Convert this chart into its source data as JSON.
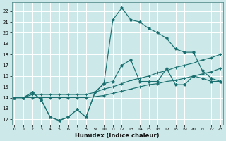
{
  "xlabel": "Humidex (Indice chaleur)",
  "background_color": "#cce8e8",
  "grid_color": "#b8d8d8",
  "line_color": "#1a7070",
  "x_ticks": [
    0,
    1,
    2,
    3,
    4,
    5,
    6,
    7,
    8,
    9,
    10,
    11,
    12,
    13,
    14,
    15,
    16,
    17,
    18,
    19,
    20,
    21,
    22,
    23
  ],
  "y_ticks": [
    12,
    13,
    14,
    15,
    16,
    17,
    18,
    19,
    20,
    21,
    22
  ],
  "ylim": [
    11.5,
    22.8
  ],
  "xlim": [
    -0.3,
    23.3
  ],
  "line_peaked_x": [
    0,
    1,
    2,
    3,
    4,
    5,
    6,
    7,
    8,
    9,
    10,
    11,
    12,
    13,
    14,
    15,
    16,
    17,
    18,
    19,
    20,
    21,
    22,
    23
  ],
  "line_peaked_y": [
    14.0,
    14.0,
    14.5,
    13.8,
    12.2,
    11.9,
    12.2,
    12.9,
    12.2,
    14.5,
    15.3,
    21.2,
    22.3,
    21.2,
    21.0,
    20.4,
    20.0,
    19.5,
    18.5,
    18.2,
    18.2,
    16.5,
    15.8,
    15.5
  ],
  "line_jagged_x": [
    0,
    1,
    2,
    3,
    4,
    5,
    6,
    7,
    8,
    9,
    10,
    11,
    12,
    13,
    14,
    15,
    16,
    17,
    18,
    19,
    20,
    21,
    22,
    23
  ],
  "line_jagged_y": [
    14.0,
    14.0,
    14.5,
    13.8,
    12.2,
    11.9,
    12.2,
    12.9,
    12.2,
    14.5,
    15.3,
    15.5,
    17.0,
    17.5,
    15.5,
    15.5,
    15.5,
    16.7,
    15.2,
    15.2,
    16.0,
    15.8,
    15.5,
    15.5
  ],
  "line_upper_x": [
    0,
    1,
    2,
    3,
    4,
    5,
    6,
    7,
    8,
    9,
    10,
    11,
    12,
    13,
    14,
    15,
    16,
    17,
    18,
    19,
    20,
    21,
    22,
    23
  ],
  "line_upper_y": [
    14.0,
    14.0,
    14.3,
    14.3,
    14.3,
    14.3,
    14.3,
    14.3,
    14.3,
    14.5,
    14.8,
    15.0,
    15.3,
    15.6,
    15.8,
    16.0,
    16.3,
    16.5,
    16.8,
    17.0,
    17.2,
    17.5,
    17.7,
    18.0
  ],
  "line_lower_x": [
    0,
    1,
    2,
    3,
    4,
    5,
    6,
    7,
    8,
    9,
    10,
    11,
    12,
    13,
    14,
    15,
    16,
    17,
    18,
    19,
    20,
    21,
    22,
    23
  ],
  "line_lower_y": [
    14.0,
    14.0,
    14.0,
    14.0,
    14.0,
    14.0,
    14.0,
    14.0,
    14.0,
    14.1,
    14.2,
    14.4,
    14.6,
    14.8,
    15.0,
    15.2,
    15.3,
    15.5,
    15.6,
    15.8,
    16.0,
    16.2,
    16.4,
    16.7
  ]
}
